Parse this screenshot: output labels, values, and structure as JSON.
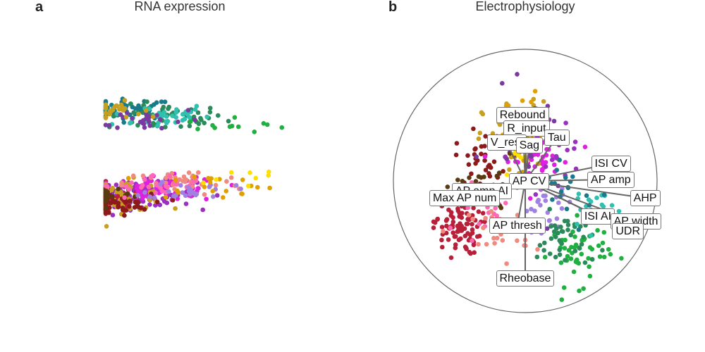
{
  "panels": {
    "a": {
      "label": "a",
      "title": "RNA expression"
    },
    "b": {
      "label": "b",
      "title": "Electrophysiology"
    }
  },
  "palette": [
    "#b8203a",
    "#c8a020",
    "#8b1a1a",
    "#9b30c0",
    "#e020e0",
    "#f08a80",
    "#5a3a10",
    "#1a7a8a",
    "#30c0b0",
    "#2a8a5a",
    "#20b040",
    "#e0a000",
    "#7a3aa0",
    "#ff69b4",
    "#a080e0",
    "#3a5a9a",
    "#ffe000",
    "#d02060",
    "#6a1a1a",
    "#c06080"
  ],
  "chart_data": [
    {
      "type": "scatter",
      "title": "RNA expression",
      "xlabel": "",
      "ylabel": "",
      "axes": "none",
      "grid": false,
      "legend": "none",
      "clusters": [
        {
          "name": "",
          "color_index": 7,
          "center": [
            -2.5,
            3.0
          ],
          "spread": [
            1.0,
            0.4
          ],
          "n": 55
        },
        {
          "name": "",
          "color_index": 9,
          "center": [
            -1.5,
            2.6
          ],
          "spread": [
            1.4,
            0.5
          ],
          "n": 55
        },
        {
          "name": "",
          "color_index": 8,
          "center": [
            -1.8,
            2.7
          ],
          "spread": [
            1.3,
            0.5
          ],
          "n": 40
        },
        {
          "name": "",
          "color_index": 12,
          "center": [
            -2.0,
            2.5
          ],
          "spread": [
            1.3,
            0.5
          ],
          "n": 25
        },
        {
          "name": "",
          "color_index": 1,
          "center": [
            -3.0,
            3.0
          ],
          "spread": [
            0.7,
            0.3
          ],
          "n": 25
        },
        {
          "name": "",
          "color_index": 10,
          "center": [
            0.5,
            2.2
          ],
          "spread": [
            1.2,
            0.3
          ],
          "n": 12
        },
        {
          "name": "",
          "color_index": 3,
          "center": [
            -2.2,
            -1.0
          ],
          "spread": [
            1.3,
            0.5
          ],
          "n": 110
        },
        {
          "name": "",
          "color_index": 0,
          "center": [
            -3.2,
            -1.4
          ],
          "spread": [
            0.9,
            0.5
          ],
          "n": 90
        },
        {
          "name": "",
          "color_index": 4,
          "center": [
            -1.5,
            -0.8
          ],
          "spread": [
            1.3,
            0.5
          ],
          "n": 60
        },
        {
          "name": "",
          "color_index": 1,
          "center": [
            -2.8,
            -1.1
          ],
          "spread": [
            1.1,
            0.6
          ],
          "n": 60
        },
        {
          "name": "",
          "color_index": 2,
          "center": [
            -3.0,
            -1.5
          ],
          "spread": [
            0.9,
            0.4
          ],
          "n": 50
        },
        {
          "name": "",
          "color_index": 5,
          "center": [
            -1.0,
            -0.5
          ],
          "spread": [
            1.4,
            0.5
          ],
          "n": 40
        },
        {
          "name": "",
          "color_index": 6,
          "center": [
            -3.4,
            -1.0
          ],
          "spread": [
            0.8,
            0.4
          ],
          "n": 40
        },
        {
          "name": "",
          "color_index": 13,
          "center": [
            -1.8,
            -0.7
          ],
          "spread": [
            1.2,
            0.5
          ],
          "n": 30
        },
        {
          "name": "",
          "color_index": 14,
          "center": [
            -0.8,
            -0.8
          ],
          "spread": [
            1.0,
            0.4
          ],
          "n": 25
        },
        {
          "name": "",
          "color_index": 11,
          "center": [
            -0.2,
            -0.6
          ],
          "spread": [
            1.5,
            0.5
          ],
          "n": 20
        },
        {
          "name": "",
          "color_index": 16,
          "center": [
            0.5,
            -0.3
          ],
          "spread": [
            1.5,
            0.5
          ],
          "n": 8
        }
      ]
    },
    {
      "type": "biplot",
      "title": "Electrophysiology",
      "xlabel": "",
      "ylabel": "",
      "axes": "none",
      "grid": false,
      "legend": "none",
      "unit_circle": true,
      "feature_loadings": [
        {
          "feature": "Rebound",
          "x": -0.02,
          "y": 0.5
        },
        {
          "feature": "R_input",
          "x": 0.01,
          "y": 0.4
        },
        {
          "feature": "Tau",
          "x": 0.24,
          "y": 0.33
        },
        {
          "feature": "V_rest",
          "x": -0.14,
          "y": 0.29
        },
        {
          "feature": "Sag",
          "x": 0.03,
          "y": 0.27
        },
        {
          "feature": "ISI CV",
          "x": 0.65,
          "y": 0.13
        },
        {
          "feature": "AP amp",
          "x": 0.65,
          "y": 0.01
        },
        {
          "feature": "AHP",
          "x": 0.91,
          "y": -0.13
        },
        {
          "feature": "AP CV",
          "x": 0.03,
          "y": 0.0
        },
        {
          "feature": "AP amp AI",
          "x": -0.33,
          "y": -0.08
        },
        {
          "feature": "Max AP num",
          "x": -0.46,
          "y": -0.13
        },
        {
          "feature": "ISI AI",
          "x": 0.55,
          "y": -0.27
        },
        {
          "feature": "AP width",
          "x": 0.84,
          "y": -0.31
        },
        {
          "feature": "UDR",
          "x": 0.78,
          "y": -0.38
        },
        {
          "feature": "AP thresh",
          "x": -0.06,
          "y": -0.34
        },
        {
          "feature": "Rheobase",
          "x": 0.0,
          "y": -0.74
        }
      ],
      "clusters": [
        {
          "name": "",
          "color_index": 0,
          "center": [
            -0.52,
            -0.35
          ],
          "spread": [
            0.12,
            0.14
          ],
          "n": 90
        },
        {
          "name": "",
          "color_index": 1,
          "center": [
            -0.05,
            0.3
          ],
          "spread": [
            0.18,
            0.2
          ],
          "n": 70
        },
        {
          "name": "",
          "color_index": 11,
          "center": [
            -0.05,
            0.45
          ],
          "spread": [
            0.1,
            0.15
          ],
          "n": 30
        },
        {
          "name": "",
          "color_index": 2,
          "center": [
            -0.32,
            0.15
          ],
          "spread": [
            0.14,
            0.15
          ],
          "n": 40
        },
        {
          "name": "",
          "color_index": 4,
          "center": [
            0.1,
            0.15
          ],
          "spread": [
            0.18,
            0.12
          ],
          "n": 40
        },
        {
          "name": "",
          "color_index": 3,
          "center": [
            0.15,
            0.25
          ],
          "spread": [
            0.18,
            0.18
          ],
          "n": 30
        },
        {
          "name": "",
          "color_index": 13,
          "center": [
            -0.25,
            -0.2
          ],
          "spread": [
            0.15,
            0.12
          ],
          "n": 25
        },
        {
          "name": "",
          "color_index": 5,
          "center": [
            -0.2,
            -0.4
          ],
          "spread": [
            0.15,
            0.15
          ],
          "n": 25
        },
        {
          "name": "",
          "color_index": 14,
          "center": [
            0.15,
            -0.2
          ],
          "spread": [
            0.15,
            0.12
          ],
          "n": 30
        },
        {
          "name": "",
          "color_index": 10,
          "center": [
            0.42,
            -0.55
          ],
          "spread": [
            0.15,
            0.16
          ],
          "n": 50
        },
        {
          "name": "",
          "color_index": 9,
          "center": [
            0.3,
            -0.45
          ],
          "spread": [
            0.14,
            0.14
          ],
          "n": 40
        },
        {
          "name": "",
          "color_index": 8,
          "center": [
            0.5,
            -0.2
          ],
          "spread": [
            0.12,
            0.12
          ],
          "n": 20
        },
        {
          "name": "",
          "color_index": 7,
          "center": [
            0.35,
            0.0
          ],
          "spread": [
            0.2,
            0.2
          ],
          "n": 20
        },
        {
          "name": "",
          "color_index": 12,
          "center": [
            0.0,
            0.2
          ],
          "spread": [
            0.2,
            0.3
          ],
          "n": 20
        },
        {
          "name": "",
          "color_index": 6,
          "center": [
            -0.3,
            -0.05
          ],
          "spread": [
            0.15,
            0.15
          ],
          "n": 20
        },
        {
          "name": "",
          "color_index": 16,
          "center": [
            -0.05,
            0.15
          ],
          "spread": [
            0.1,
            0.1
          ],
          "n": 8
        }
      ]
    }
  ]
}
